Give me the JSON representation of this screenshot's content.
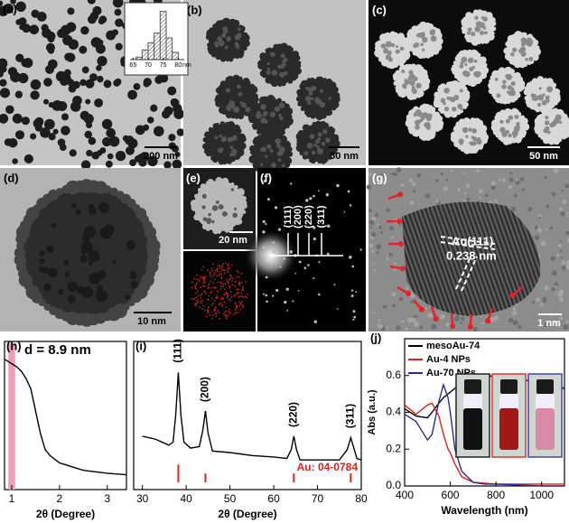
{
  "panels": [
    {
      "label": "(a)",
      "scale": "200 nm"
    },
    {
      "label": "(b)",
      "scale": "50 nm"
    },
    {
      "label": "(c)",
      "scale": "50 nm"
    },
    {
      "label": "(d)",
      "scale": "10 nm"
    },
    {
      "label": "(e)",
      "scale": "20 nm"
    },
    {
      "label": "(f)",
      "planes": [
        "(111)",
        "(200)",
        "(220)",
        "(311)"
      ]
    },
    {
      "label": "(g)",
      "lattice": "Au(111)",
      "spacing": "0.238 nm",
      "scale": "1 nm"
    }
  ],
  "chart_data": [
    {
      "type": "histogram",
      "bins": [
        66,
        68,
        70,
        72,
        74,
        76,
        78,
        80
      ],
      "values": [
        5,
        20,
        35,
        55,
        100,
        45,
        15
      ],
      "xlim": [
        64,
        82
      ],
      "xticks": [
        65,
        70,
        75,
        80
      ],
      "ylim": [
        0,
        105
      ],
      "xlabel": "nm",
      "color": "#555555"
    },
    {
      "type": "line",
      "label": "(h)",
      "annotation": "d = 8.9 nm",
      "xlabel": "2θ (Degree)",
      "x": [
        0.85,
        0.9,
        1.0,
        1.1,
        1.2,
        1.3,
        1.4,
        1.5,
        1.6,
        1.7,
        1.8,
        2.0,
        2.5,
        3.0,
        3.4
      ],
      "values": [
        0.88,
        0.87,
        0.85,
        0.83,
        0.8,
        0.75,
        0.68,
        0.53,
        0.38,
        0.27,
        0.23,
        0.18,
        0.13,
        0.11,
        0.1
      ],
      "color": "#000000",
      "highlight_x": [
        0.93,
        1.07
      ],
      "highlight_color": "#f29ab8",
      "xlim": [
        0.85,
        3.4
      ],
      "xticks": [
        1,
        2,
        3
      ],
      "ylim": [
        0,
        1
      ]
    },
    {
      "type": "line",
      "label": "(i)",
      "xlabel": "2θ (Degree)",
      "x": [
        30,
        33,
        36,
        37,
        37.6,
        38.2,
        38.8,
        39.5,
        41,
        43,
        43.8,
        44.4,
        45,
        46,
        50,
        55,
        60,
        63,
        64,
        64.6,
        65.2,
        66,
        70,
        75,
        76.8,
        77.6,
        78.4,
        79,
        80
      ],
      "values": [
        0.36,
        0.34,
        0.3,
        0.32,
        0.5,
        0.79,
        0.5,
        0.32,
        0.28,
        0.29,
        0.4,
        0.53,
        0.38,
        0.26,
        0.25,
        0.23,
        0.22,
        0.21,
        0.27,
        0.36,
        0.27,
        0.2,
        0.2,
        0.2,
        0.27,
        0.35,
        0.27,
        0.21,
        0.2
      ],
      "color": "#000000",
      "peak_labels": [
        {
          "x": 38.2,
          "label": "(111)"
        },
        {
          "x": 44.4,
          "label": "(200)"
        },
        {
          "x": 64.6,
          "label": "(220)"
        },
        {
          "x": 77.6,
          "label": "(311)"
        }
      ],
      "reference": {
        "name": "Au: 04-0784",
        "color": "#e0201b",
        "x": [
          38.2,
          44.4,
          64.6,
          77.6
        ],
        "values": [
          0.12,
          0.06,
          0.06,
          0.06
        ]
      },
      "xlim": [
        28,
        80
      ],
      "xticks": [
        30,
        40,
        50,
        60,
        70,
        80
      ],
      "ylim": [
        0,
        1
      ]
    },
    {
      "type": "line",
      "label": "(j)",
      "xlabel": "Wavelength (nm)",
      "ylabel": "Abs (a.u.)",
      "x": [
        400,
        450,
        500,
        520,
        550,
        570,
        590,
        600,
        620,
        650,
        700,
        750,
        800,
        900,
        1000,
        1100
      ],
      "series": [
        {
          "name": "mesoAu-74",
          "color": "#000000",
          "values": [
            0.42,
            0.38,
            0.37,
            0.4,
            0.45,
            0.48,
            0.5,
            0.51,
            0.53,
            0.56,
            0.59,
            0.6,
            0.595,
            0.58,
            0.56,
            0.53
          ]
        },
        {
          "name": "Au-4 NPs",
          "color": "#e0201b",
          "values": [
            0.44,
            0.39,
            0.44,
            0.45,
            0.38,
            0.28,
            0.2,
            0.18,
            0.12,
            0.05,
            0.02,
            0.015,
            0.01,
            0.01,
            0.01,
            0.01
          ]
        },
        {
          "name": "Au-70 NPs",
          "color": "#2a2a9e",
          "values": [
            0.39,
            0.35,
            0.25,
            0.28,
            0.46,
            0.55,
            0.48,
            0.4,
            0.2,
            0.08,
            0.02,
            0.01,
            0.01,
            0.005,
            0.0,
            0.0
          ]
        }
      ],
      "xlim": [
        400,
        1100
      ],
      "xticks": [
        400,
        600,
        800,
        1000
      ],
      "ylim": [
        0,
        0.8
      ],
      "yticks": [
        {
          "value": 0,
          "label": "0.0"
        },
        0.2,
        0.4,
        0.6
      ]
    }
  ]
}
